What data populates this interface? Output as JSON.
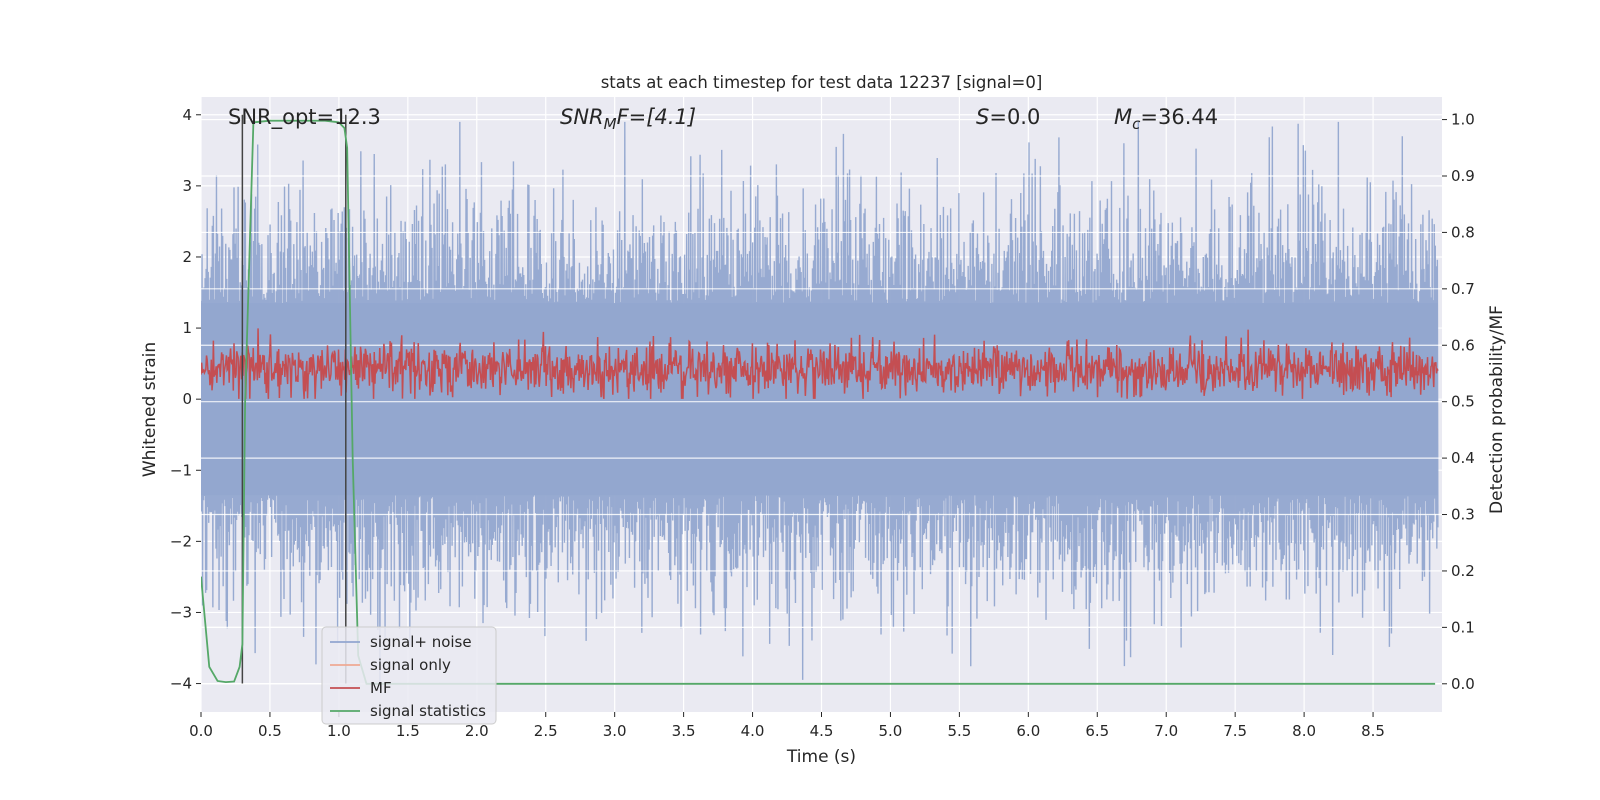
{
  "chart_data": {
    "type": "line",
    "title": "stats at each timestep for test data 12237 [signal=0]",
    "xlabel": "Time (s)",
    "ylabel_left": "Whitened strain",
    "ylabel_right": "Detection probability/MF",
    "xlim": [
      0.0,
      9.0
    ],
    "ylim_left": [
      -4.4,
      4.25
    ],
    "ylim_right": [
      -0.05,
      1.04
    ],
    "xticks": [
      0.0,
      0.5,
      1.0,
      1.5,
      2.0,
      2.5,
      3.0,
      3.5,
      4.0,
      4.5,
      5.0,
      5.5,
      6.0,
      6.5,
      7.0,
      7.5,
      8.0,
      8.5
    ],
    "xtick_labels": [
      "0.0",
      "0.5",
      "1.0",
      "1.5",
      "2.0",
      "2.5",
      "3.0",
      "3.5",
      "4.0",
      "4.5",
      "5.0",
      "5.5",
      "6.0",
      "6.5",
      "7.0",
      "7.5",
      "8.0",
      "8.5"
    ],
    "yticks_left": [
      -4,
      -3,
      -2,
      -1,
      0,
      1,
      2,
      3,
      4
    ],
    "ytick_labels_left": [
      "−4",
      "−3",
      "−2",
      "−1",
      "0",
      "1",
      "2",
      "3",
      "4"
    ],
    "yticks_right": [
      0.0,
      0.1,
      0.2,
      0.3,
      0.4,
      0.5,
      0.6,
      0.7,
      0.8,
      0.9,
      1.0
    ],
    "ytick_labels_right": [
      "0.0",
      "0.1",
      "0.2",
      "0.3",
      "0.4",
      "0.5",
      "0.6",
      "0.7",
      "0.8",
      "0.9",
      "1.0"
    ],
    "grid": true,
    "legend_position": "bottom-left",
    "annotations": {
      "snr_opt": "SNR_opt=12.3",
      "snr_mf_symbol": "SNR",
      "snr_mf_sub": "M",
      "snr_mf_rest": "F=[4.1]",
      "s_symbol": "S",
      "s_rest": "=0.0",
      "mc_symbol": "M",
      "mc_sub": "c",
      "mc_rest": "=36.44"
    },
    "vertical_markers_x": [
      0.3,
      1.05
    ],
    "series": [
      {
        "name": "signal+ noise",
        "axis": "left",
        "color": "#92a6cf",
        "description_range": [
          -4.0,
          3.9
        ],
        "typical_amplitude": 1.7,
        "points": 900
      },
      {
        "name": "signal only",
        "axis": "left",
        "color": "#eea993",
        "values": []
      },
      {
        "name": "MF",
        "axis": "right",
        "color": "#c44e52",
        "typical_range": [
          0.51,
          0.61
        ],
        "max_value": 0.63,
        "points": 1800
      },
      {
        "name": "signal statistics",
        "axis": "right",
        "color": "#55a868",
        "x": [
          0.0,
          0.06,
          0.12,
          0.18,
          0.24,
          0.28,
          0.3,
          0.32,
          0.38,
          0.5,
          0.7,
          0.9,
          1.0,
          1.04,
          1.06,
          1.1,
          1.14,
          1.2,
          1.3,
          2.0,
          3.0,
          4.0,
          5.0,
          6.0,
          7.0,
          8.0,
          8.95
        ],
        "values": [
          0.19,
          0.03,
          0.005,
          0.003,
          0.004,
          0.03,
          0.07,
          0.5,
          0.995,
          0.998,
          0.998,
          0.998,
          0.995,
          0.985,
          0.95,
          0.4,
          0.05,
          0.0,
          0.0,
          0.0,
          0.0,
          0.0,
          0.0,
          0.0,
          0.0,
          0.0,
          0.0
        ]
      }
    ],
    "colors": {
      "plot_bg": "#eaeaf2",
      "grid": "#ffffff",
      "marker_line": "#444444"
    }
  }
}
